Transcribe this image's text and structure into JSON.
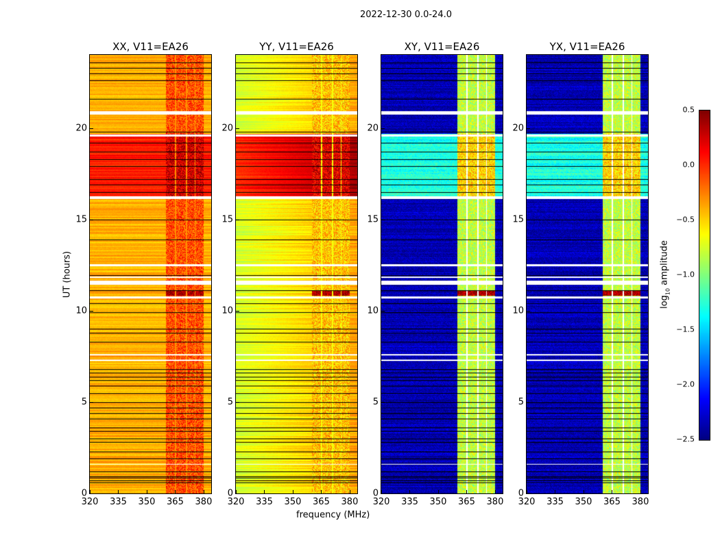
{
  "chart_data": {
    "type": "heatmap",
    "title": "2022-12-30 0.0-24.0",
    "xlabel": "frequency (MHz)",
    "ylabel": "UT (hours)",
    "xlim": [
      320,
      384
    ],
    "ylim": [
      0,
      24
    ],
    "xticks": [
      320,
      335,
      350,
      365,
      380
    ],
    "yticks": [
      0,
      5,
      10,
      15,
      20
    ],
    "colorbar": {
      "label": "log10 amplitude",
      "label_main": "log",
      "label_sub": "10",
      "label_rest": " amplitude",
      "colormap": "jet",
      "range": [
        -2.5,
        0.5
      ],
      "ticks": [
        "0.5",
        "0.0",
        "−0.5",
        "−1.0",
        "−1.5",
        "−2.0",
        "−2.5"
      ],
      "tick_values": [
        0.5,
        0.0,
        -0.5,
        -1.0,
        -1.5,
        -2.0,
        -2.5
      ]
    },
    "flagged_white_hours": [
      [
        20.75,
        20.95
      ],
      [
        19.55,
        19.65
      ],
      [
        16.15,
        16.3
      ],
      [
        12.45,
        12.55
      ],
      [
        11.8,
        11.9
      ],
      [
        11.45,
        11.65
      ],
      [
        10.7,
        10.8
      ],
      [
        7.55,
        7.65
      ],
      [
        7.25,
        7.35
      ],
      [
        1.6,
        1.65
      ]
    ],
    "dark_line_hours": [
      23.6,
      23.3,
      23.0,
      22.6,
      21.6,
      19.8,
      19.2,
      18.7,
      18.3,
      17.9,
      17.2,
      16.9,
      16.5,
      15.0,
      13.9,
      11.95,
      11.1,
      10.4,
      9.9,
      9.0,
      8.8,
      8.3,
      6.8,
      6.6,
      6.4,
      6.2,
      5.9,
      5.5,
      5.0,
      4.7,
      4.4,
      4.1,
      3.6,
      3.4,
      3.0,
      2.8,
      2.3,
      1.9,
      1.2,
      0.95,
      0.85,
      0.7,
      0.6
    ],
    "enhanced_period_hours": [
      16.3,
      19.7
    ],
    "high_band_mhz": [
      360,
      380
    ],
    "high_band_gaps_mhz": [
      365,
      370.7,
      375.3,
      380
    ],
    "panels": [
      {
        "title": "XX, V11=EA26",
        "low_band_level": -0.4,
        "high_band_level": -0.1,
        "enhanced_low_level": 0.05,
        "enhanced_high_level": 0.25,
        "flare_11h_level": 0.4
      },
      {
        "title": "YY, V11=EA26",
        "low_band_level": -0.75,
        "high_band_level": -0.45,
        "enhanced_low_level": 0.0,
        "enhanced_high_level": 0.2,
        "flare_11h_level": 0.4
      },
      {
        "title": "XY, V11=EA26",
        "low_band_level": -2.35,
        "high_band_level": -0.8,
        "enhanced_low_level": -1.3,
        "enhanced_high_level": -0.5,
        "flare_11h_level": 0.4
      },
      {
        "title": "YX, V11=EA26",
        "low_band_level": -2.35,
        "high_band_level": -0.8,
        "enhanced_low_level": -1.3,
        "enhanced_high_level": -0.5,
        "flare_11h_level": 0.4
      }
    ]
  }
}
